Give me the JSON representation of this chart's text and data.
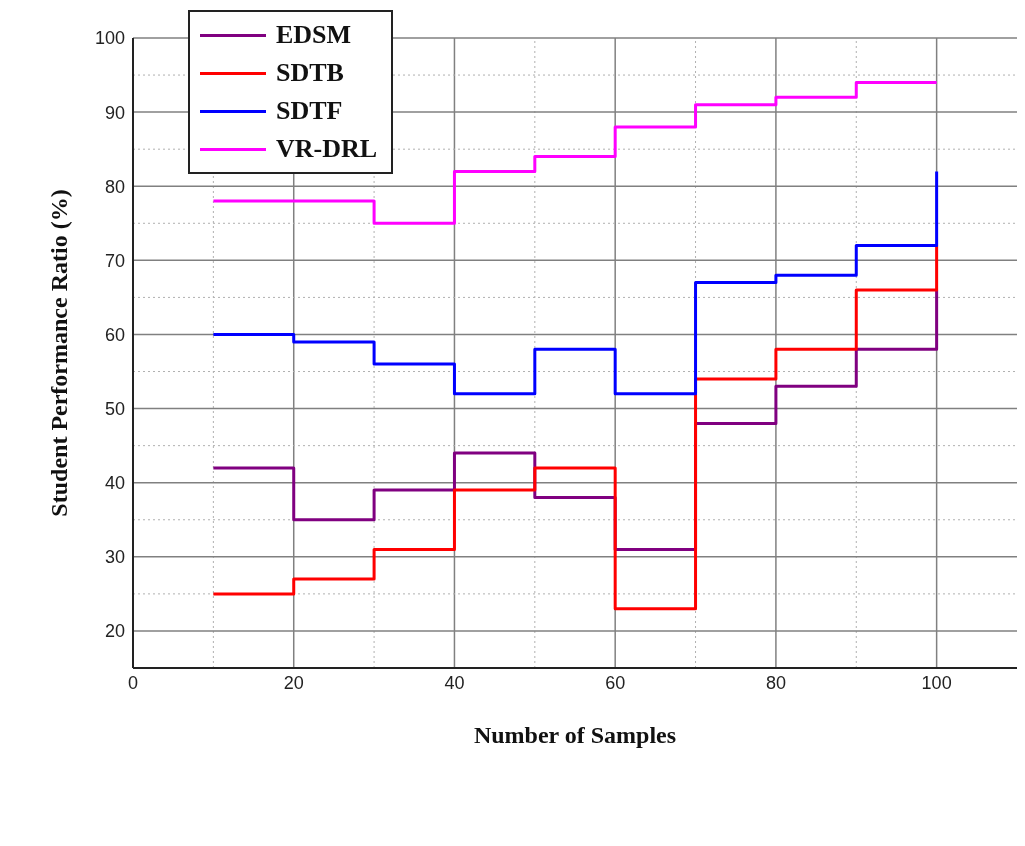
{
  "chart_data": {
    "type": "step",
    "xlabel": "Number of Samples",
    "ylabel": "Student Performance Ratio (%)",
    "x": [
      10,
      20,
      30,
      40,
      50,
      60,
      70,
      80,
      90,
      100
    ],
    "series": [
      {
        "name": "EDSM",
        "color": "#800080",
        "values": [
          42,
          35,
          39,
          44,
          38,
          31,
          48,
          53,
          58,
          66
        ]
      },
      {
        "name": "SDTB",
        "color": "#ff0000",
        "values": [
          25,
          27,
          31,
          39,
          42,
          23,
          54,
          58,
          66,
          72
        ]
      },
      {
        "name": "SDTF",
        "color": "#0000ff",
        "values": [
          60,
          59,
          56,
          52,
          58,
          52,
          67,
          68,
          72,
          82
        ]
      },
      {
        "name": "VR-DRL",
        "color": "#ff00ff",
        "values": [
          78,
          78,
          75,
          82,
          84,
          88,
          91,
          92,
          94,
          94
        ]
      }
    ],
    "xlim": [
      0,
      110
    ],
    "xticks": [
      0,
      {
        "value": 10,
        "label": null
      },
      20,
      {
        "value": 30,
        "label": null
      },
      40,
      {
        "value": 50,
        "label": null
      },
      60,
      {
        "value": 70,
        "label": null
      },
      80,
      {
        "value": 90,
        "label": null
      },
      100
    ],
    "ylim": [
      15,
      100
    ],
    "yticks": [
      20,
      {
        "value": 25,
        "label": null
      },
      30,
      {
        "value": 35,
        "label": null
      },
      40,
      {
        "value": 45,
        "label": null
      },
      50,
      {
        "value": 55,
        "label": null
      },
      60,
      {
        "value": 65,
        "label": null
      },
      70,
      {
        "value": 75,
        "label": null
      },
      80,
      {
        "value": 85,
        "label": null
      },
      90,
      {
        "value": 95,
        "label": null
      },
      100
    ],
    "grid": true,
    "legend": "top left",
    "marker": "none",
    "line_style": "solid"
  }
}
